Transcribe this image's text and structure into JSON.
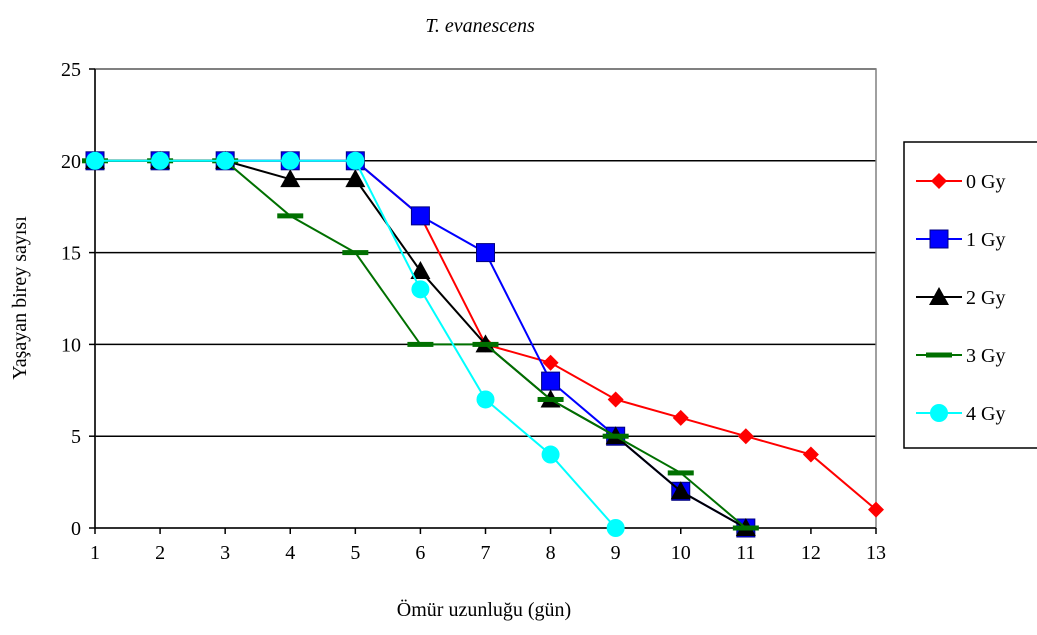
{
  "chart_data": {
    "type": "line",
    "title": "T. evanescens",
    "xlabel": "Ömür uzunluğu (gün)",
    "ylabel": "Yaşayan birey sayısı",
    "x": [
      1,
      2,
      3,
      4,
      5,
      6,
      7,
      8,
      9,
      10,
      11,
      12,
      13
    ],
    "xlim": [
      1,
      13
    ],
    "ylim": [
      0,
      25
    ],
    "yticks": [
      0,
      5,
      10,
      15,
      20,
      25
    ],
    "grid": "horizontal",
    "legend": "right",
    "series": [
      {
        "name": "0 Gy",
        "color": "#ff0000",
        "marker": "diamond",
        "values": [
          20,
          20,
          20,
          20,
          20,
          17,
          10,
          9,
          7,
          6,
          5,
          4,
          1
        ]
      },
      {
        "name": "1 Gy",
        "color": "#0000ff",
        "marker": "square",
        "values": [
          20,
          20,
          20,
          20,
          20,
          17,
          15,
          8,
          5,
          2,
          0,
          null,
          null
        ]
      },
      {
        "name": "2 Gy",
        "color": "#000000",
        "marker": "triangle",
        "values": [
          20,
          20,
          20,
          19,
          19,
          14,
          10,
          7,
          5,
          2,
          0,
          null,
          null
        ]
      },
      {
        "name": "3 Gy",
        "color": "#007000",
        "marker": "dash",
        "values": [
          20,
          20,
          20,
          17,
          15,
          10,
          10,
          7,
          5,
          3,
          0,
          null,
          null
        ]
      },
      {
        "name": "4 Gy",
        "color": "#00ffff",
        "marker": "circle",
        "values": [
          20,
          20,
          20,
          20,
          20,
          13,
          7,
          4,
          0,
          null,
          null,
          null,
          null
        ]
      }
    ]
  }
}
